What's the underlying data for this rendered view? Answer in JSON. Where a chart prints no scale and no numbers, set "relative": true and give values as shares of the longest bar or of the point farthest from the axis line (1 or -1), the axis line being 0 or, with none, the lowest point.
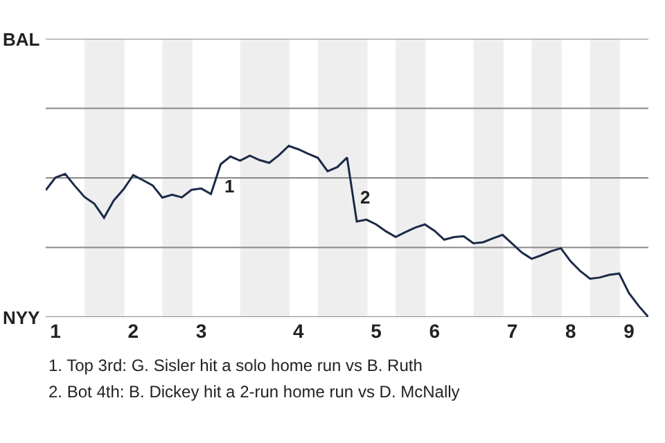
{
  "chart_data": {
    "type": "line",
    "relative": true,
    "categories": [
      null,
      "1",
      null,
      null,
      null,
      null,
      null,
      null,
      null,
      "2",
      null,
      null,
      null,
      null,
      null,
      null,
      "3",
      null,
      null,
      null,
      null,
      null,
      null,
      null,
      null,
      null,
      "4",
      null,
      null,
      null,
      null,
      null,
      null,
      null,
      "5",
      null,
      null,
      null,
      null,
      null,
      "6",
      null,
      null,
      null,
      null,
      null,
      null,
      null,
      "7",
      null,
      null,
      null,
      null,
      null,
      "8",
      null,
      null,
      null,
      null,
      null,
      "9",
      null,
      null
    ],
    "series": [
      {
        "color": "#1b2a47",
        "values": [
          0.741,
          0.815,
          0.836,
          0.766,
          0.701,
          0.662,
          0.58,
          0.681,
          0.746,
          0.829,
          0.8,
          0.769,
          0.698,
          0.715,
          0.699,
          0.743,
          0.751,
          0.719,
          0.893,
          0.938,
          0.914,
          0.943,
          0.917,
          0.901,
          0.946,
          1,
          0.98,
          0.954,
          0.93,
          0.852,
          0.876,
          0.932,
          0.558,
          0.569,
          0.541,
          0.501,
          0.468,
          0.496,
          0.522,
          0.541,
          0.504,
          0.452,
          0.467,
          0.472,
          0.431,
          0.437,
          0.46,
          0.48,
          0.428,
          0.376,
          0.34,
          0.361,
          0.385,
          0.402,
          0.325,
          0.268,
          0.224,
          0.231,
          0.247,
          0.254,
          0.14,
          0.065,
          0
        ]
      }
    ],
    "legend": false,
    "marker": "none",
    "line_style": "solid",
    "ref_lines": [
      {
        "axis": "y",
        "value": 0,
        "color": "#888888"
      },
      {
        "axis": "y",
        "value": 0.407,
        "color": "#888888"
      },
      {
        "axis": "y",
        "value": 0.813,
        "color": "#888888"
      },
      {
        "axis": "y",
        "value": 1.22,
        "color": "#888888"
      },
      {
        "axis": "y",
        "value": 1.626,
        "color": "#888888"
      }
    ],
    "annotations": [
      "BAL",
      "NYY",
      "1",
      "2",
      "1. Top 3rd: G. Sisler hit a solo home run vs B. Ruth",
      "2. Bot 4th: B. Dickey hit a 2-run home run vs D. McNally"
    ]
  }
}
